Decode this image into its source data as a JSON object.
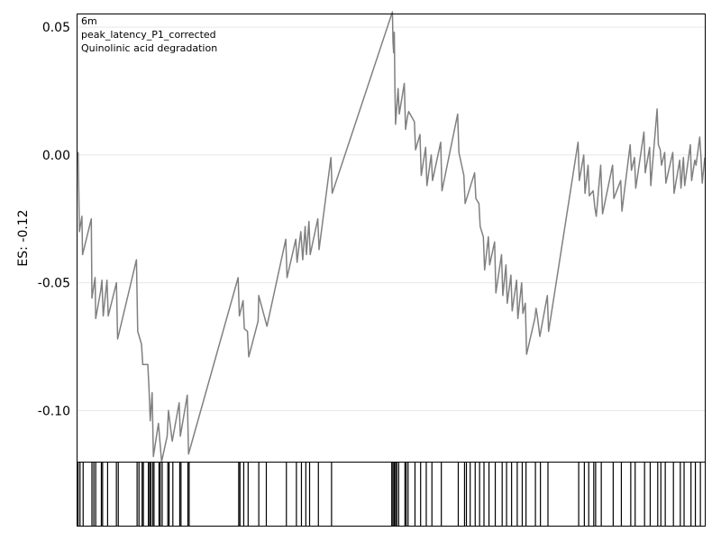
{
  "chart_data": {
    "type": "line",
    "ylabel": "ES: -0.12",
    "annotations": [
      "6m",
      "peak_latency_P1_corrected",
      "Quinolinic acid degradation"
    ],
    "ylim": [
      -0.12,
      0.055
    ],
    "xlim": [
      0,
      1
    ],
    "yticks": [
      0.05,
      0.0,
      -0.05,
      -0.1
    ],
    "ytick_labels": [
      "0.05",
      "0.00",
      "-0.05",
      "-0.10"
    ],
    "grid": true,
    "line_color": "#808080",
    "series": [
      {
        "values": [
          [
            0.0,
            0.0
          ],
          [
            0.001,
            0.001
          ],
          [
            0.002,
            -0.014
          ],
          [
            0.003,
            -0.03
          ],
          [
            0.007,
            -0.024
          ],
          [
            0.008,
            -0.039
          ],
          [
            0.022,
            -0.025
          ],
          [
            0.023,
            -0.056
          ],
          [
            0.028,
            -0.048
          ],
          [
            0.029,
            -0.064
          ],
          [
            0.037,
            -0.053
          ],
          [
            0.039,
            -0.049
          ],
          [
            0.041,
            -0.063
          ],
          [
            0.047,
            -0.049
          ],
          [
            0.049,
            -0.063
          ],
          [
            0.062,
            -0.05
          ],
          [
            0.064,
            -0.072
          ],
          [
            0.094,
            -0.041
          ],
          [
            0.096,
            -0.069
          ],
          [
            0.102,
            -0.074
          ],
          [
            0.104,
            -0.082
          ],
          [
            0.112,
            -0.082
          ],
          [
            0.114,
            -0.091
          ],
          [
            0.116,
            -0.104
          ],
          [
            0.119,
            -0.093
          ],
          [
            0.121,
            -0.118
          ],
          [
            0.129,
            -0.105
          ],
          [
            0.131,
            -0.111
          ],
          [
            0.134,
            -0.12
          ],
          [
            0.143,
            -0.11
          ],
          [
            0.145,
            -0.1
          ],
          [
            0.151,
            -0.112
          ],
          [
            0.162,
            -0.097
          ],
          [
            0.164,
            -0.11
          ],
          [
            0.175,
            -0.094
          ],
          [
            0.177,
            -0.117
          ],
          [
            0.256,
            -0.048
          ],
          [
            0.258,
            -0.063
          ],
          [
            0.264,
            -0.057
          ],
          [
            0.266,
            -0.068
          ],
          [
            0.271,
            -0.069
          ],
          [
            0.273,
            -0.079
          ],
          [
            0.288,
            -0.065
          ],
          [
            0.289,
            -0.055
          ],
          [
            0.302,
            -0.067
          ],
          [
            0.332,
            -0.033
          ],
          [
            0.334,
            -0.048
          ],
          [
            0.348,
            -0.033
          ],
          [
            0.35,
            -0.042
          ],
          [
            0.356,
            -0.03
          ],
          [
            0.359,
            -0.041
          ],
          [
            0.363,
            -0.028
          ],
          [
            0.365,
            -0.039
          ],
          [
            0.369,
            -0.026
          ],
          [
            0.371,
            -0.039
          ],
          [
            0.383,
            -0.025
          ],
          [
            0.385,
            -0.037
          ],
          [
            0.404,
            -0.001
          ],
          [
            0.406,
            -0.015
          ],
          [
            0.502,
            0.056
          ],
          [
            0.503,
            0.044
          ],
          [
            0.504,
            0.04
          ],
          [
            0.505,
            0.048
          ],
          [
            0.506,
            0.026
          ],
          [
            0.507,
            0.012
          ],
          [
            0.511,
            0.026
          ],
          [
            0.513,
            0.016
          ],
          [
            0.521,
            0.028
          ],
          [
            0.523,
            0.01
          ],
          [
            0.526,
            0.015
          ],
          [
            0.528,
            0.017
          ],
          [
            0.537,
            0.013
          ],
          [
            0.539,
            0.002
          ],
          [
            0.546,
            0.008
          ],
          [
            0.548,
            -0.008
          ],
          [
            0.555,
            0.003
          ],
          [
            0.557,
            -0.012
          ],
          [
            0.564,
            0.0
          ],
          [
            0.566,
            -0.01
          ],
          [
            0.579,
            0.005
          ],
          [
            0.581,
            -0.014
          ],
          [
            0.606,
            0.016
          ],
          [
            0.608,
            0.001
          ],
          [
            0.616,
            -0.008
          ],
          [
            0.618,
            -0.019
          ],
          [
            0.633,
            -0.007
          ],
          [
            0.635,
            -0.017
          ],
          [
            0.64,
            -0.019
          ],
          [
            0.642,
            -0.028
          ],
          [
            0.647,
            -0.032
          ],
          [
            0.649,
            -0.045
          ],
          [
            0.655,
            -0.032
          ],
          [
            0.657,
            -0.043
          ],
          [
            0.665,
            -0.034
          ],
          [
            0.667,
            -0.054
          ],
          [
            0.676,
            -0.039
          ],
          [
            0.678,
            -0.055
          ],
          [
            0.683,
            -0.043
          ],
          [
            0.685,
            -0.058
          ],
          [
            0.691,
            -0.047
          ],
          [
            0.693,
            -0.061
          ],
          [
            0.7,
            -0.049
          ],
          [
            0.702,
            -0.064
          ],
          [
            0.708,
            -0.05
          ],
          [
            0.71,
            -0.062
          ],
          [
            0.714,
            -0.058
          ],
          [
            0.716,
            -0.078
          ],
          [
            0.729,
            -0.064
          ],
          [
            0.731,
            -0.06
          ],
          [
            0.733,
            -0.063
          ],
          [
            0.737,
            -0.071
          ],
          [
            0.749,
            -0.055
          ],
          [
            0.751,
            -0.069
          ],
          [
            0.798,
            0.005
          ],
          [
            0.8,
            -0.01
          ],
          [
            0.807,
            0.0
          ],
          [
            0.809,
            -0.015
          ],
          [
            0.814,
            -0.004
          ],
          [
            0.816,
            -0.016
          ],
          [
            0.822,
            -0.014
          ],
          [
            0.825,
            -0.021
          ],
          [
            0.827,
            -0.024
          ],
          [
            0.834,
            -0.004
          ],
          [
            0.837,
            -0.023
          ],
          [
            0.853,
            -0.004
          ],
          [
            0.855,
            -0.017
          ],
          [
            0.866,
            -0.01
          ],
          [
            0.868,
            -0.022
          ],
          [
            0.881,
            0.004
          ],
          [
            0.883,
            -0.006
          ],
          [
            0.888,
            -0.001
          ],
          [
            0.89,
            -0.013
          ],
          [
            0.903,
            0.009
          ],
          [
            0.905,
            -0.007
          ],
          [
            0.912,
            0.003
          ],
          [
            0.914,
            -0.012
          ],
          [
            0.924,
            0.018
          ],
          [
            0.926,
            0.004
          ],
          [
            0.929,
            0.002
          ],
          [
            0.931,
            -0.004
          ],
          [
            0.936,
            0.001
          ],
          [
            0.938,
            -0.011
          ],
          [
            0.949,
            0.001
          ],
          [
            0.951,
            -0.015
          ],
          [
            0.96,
            -0.002
          ],
          [
            0.962,
            -0.013
          ],
          [
            0.966,
            -0.001
          ],
          [
            0.968,
            -0.012
          ],
          [
            0.977,
            0.004
          ],
          [
            0.979,
            -0.01
          ],
          [
            0.984,
            -0.002
          ],
          [
            0.986,
            -0.004
          ],
          [
            0.992,
            0.007
          ],
          [
            0.994,
            -0.001
          ],
          [
            0.996,
            -0.011
          ],
          [
            1.0,
            -0.001
          ]
        ]
      }
    ],
    "hits": [
      0.001,
      0.004,
      0.009,
      0.023,
      0.026,
      0.029,
      0.038,
      0.04,
      0.048,
      0.062,
      0.065,
      0.095,
      0.098,
      0.103,
      0.105,
      0.113,
      0.115,
      0.117,
      0.12,
      0.122,
      0.13,
      0.132,
      0.135,
      0.144,
      0.146,
      0.152,
      0.163,
      0.165,
      0.176,
      0.178,
      0.257,
      0.259,
      0.265,
      0.272,
      0.289,
      0.301,
      0.333,
      0.349,
      0.357,
      0.364,
      0.37,
      0.384,
      0.405,
      0.501,
      0.503,
      0.505,
      0.507,
      0.509,
      0.512,
      0.522,
      0.524,
      0.527,
      0.538,
      0.547,
      0.556,
      0.565,
      0.58,
      0.607,
      0.617,
      0.62,
      0.626,
      0.634,
      0.641,
      0.648,
      0.656,
      0.666,
      0.677,
      0.684,
      0.692,
      0.701,
      0.709,
      0.715,
      0.73,
      0.738,
      0.75,
      0.799,
      0.808,
      0.815,
      0.823,
      0.826,
      0.835,
      0.854,
      0.867,
      0.882,
      0.889,
      0.904,
      0.913,
      0.925,
      0.93,
      0.937,
      0.95,
      0.961,
      0.967,
      0.978,
      0.985,
      0.993
    ]
  }
}
